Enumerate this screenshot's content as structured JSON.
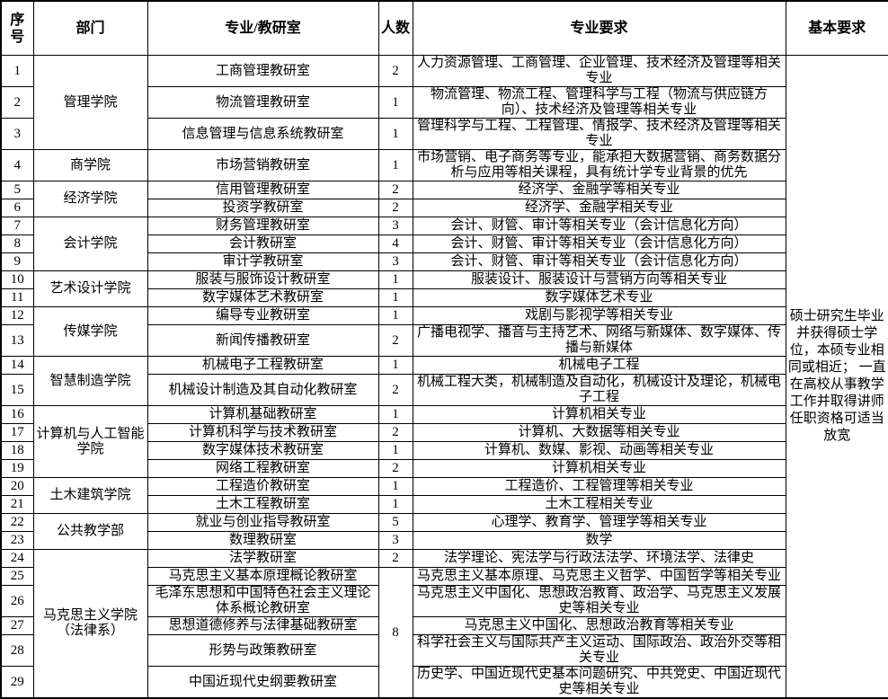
{
  "table": {
    "headers": [
      "序号",
      "部门",
      "专业/教研室",
      "人数",
      "专业要求",
      "基本要求"
    ],
    "basic_requirement": "硕士研究生毕业并获得硕士学位，本硕专业相同或相近； 一直在高校从事教学工作并取得讲师任职资格可适当放宽",
    "departments": [
      {
        "name": "管理学院",
        "rows": [
          {
            "no": "1",
            "office": "工商管理教研室",
            "count": "2",
            "requirement": "人力资源管理、工商管理、企业管理、技术经济及管理等相关专业"
          },
          {
            "no": "2",
            "office": "物流管理教研室",
            "count": "1",
            "requirement": "物流管理、物流工程、管理科学与工程（物流与供应链方向）、技术经济及管理等相关专业"
          },
          {
            "no": "3",
            "office": "信息管理与信息系统教研室",
            "count": "1",
            "requirement": "管理科学与工程、工程管理、情报学、技术经济及管理等相关专业"
          }
        ]
      },
      {
        "name": "商学院",
        "rows": [
          {
            "no": "4",
            "office": "市场营销教研室",
            "count": "1",
            "requirement": "市场营销、电子商务等专业，能承担大数据营销、商务数据分析与应用等相关课程，具有统计学专业背景的优先"
          }
        ]
      },
      {
        "name": "经济学院",
        "rows": [
          {
            "no": "5",
            "office": "信用管理教研室",
            "count": "2",
            "requirement": "经济学、金融学等相关专业"
          },
          {
            "no": "6",
            "office": "投资学教研室",
            "count": "2",
            "requirement": "经济学、金融学相关专业"
          }
        ]
      },
      {
        "name": "会计学院",
        "rows": [
          {
            "no": "7",
            "office": "财务管理教研室",
            "count": "3",
            "requirement": "会计、财管、审计等相关专业（会计信息化方向）"
          },
          {
            "no": "8",
            "office": "会计教研室",
            "count": "4",
            "requirement": "会计、财管、审计等相关专业（会计信息化方向）"
          },
          {
            "no": "9",
            "office": "审计学教研室",
            "count": "3",
            "requirement": "会计、财管、审计等相关专业（会计信息化方向）"
          }
        ]
      },
      {
        "name": "艺术设计学院",
        "rows": [
          {
            "no": "10",
            "office": "服装与服饰设计教研室",
            "count": "1",
            "requirement": "服装设计、服装设计与营销方向等相关专业"
          },
          {
            "no": "11",
            "office": "数字媒体艺术教研室",
            "count": "1",
            "requirement": "数字媒体艺术专业"
          }
        ]
      },
      {
        "name": "传媒学院",
        "rows": [
          {
            "no": "12",
            "office": "编导专业教研室",
            "count": "1",
            "requirement": "戏剧与影视学等相关专业"
          },
          {
            "no": "13",
            "office": "新闻传播教研室",
            "count": "2",
            "requirement": "广播电视学、播音与主持艺术、网络与新媒体、数字媒体、传播与新媒体"
          }
        ]
      },
      {
        "name": "智慧制造学院",
        "rows": [
          {
            "no": "14",
            "office": "机械电子工程教研室",
            "count": "1",
            "requirement": "机械电子工程"
          },
          {
            "no": "15",
            "office": "机械设计制造及其自动化教研室",
            "count": "2",
            "requirement": "机械工程大类，机械制造及自动化，机械设计及理论，机械电子工程"
          }
        ]
      },
      {
        "name": "计算机与人工智能学院",
        "rows": [
          {
            "no": "16",
            "office": "计算机基础教研室",
            "count": "1",
            "requirement": "计算机相关专业"
          },
          {
            "no": "17",
            "office": "计算机科学与技术教研室",
            "count": "2",
            "requirement": "计算机、大数据等相关专业"
          },
          {
            "no": "18",
            "office": "数字媒体技术教研室",
            "count": "1",
            "requirement": "计算机、数媒、影视、动画等相关专业"
          },
          {
            "no": "19",
            "office": "网络工程教研室",
            "count": "2",
            "requirement": "计算机相关专业"
          }
        ]
      },
      {
        "name": "土木建筑学院",
        "rows": [
          {
            "no": "20",
            "office": "工程造价教研室",
            "count": "1",
            "requirement": "工程造价、工程管理等相关专业"
          },
          {
            "no": "21",
            "office": "土木工程教研室",
            "count": "1",
            "requirement": "土木工程相关专业"
          }
        ]
      },
      {
        "name": "公共教学部",
        "rows": [
          {
            "no": "22",
            "office": "就业与创业指导教研室",
            "count": "5",
            "requirement": "心理学、教育学、管理学等相关专业"
          },
          {
            "no": "23",
            "office": "数理教研室",
            "count": "3",
            "requirement": "数学"
          }
        ]
      },
      {
        "name": "马克思主义学院（法律系）",
        "rows": [
          {
            "no": "24",
            "office": "法学教研室",
            "count": "2",
            "requirement": "法学理论、宪法学与行政法法学、环境法学、法律史"
          },
          {
            "no": "25",
            "office": "马克思主义基本原理概论教研室",
            "count": "8",
            "count_rowspan": 5,
            "requirement": "马克思主义基本原理、马克思主义哲学、中国哲学等相关专业"
          },
          {
            "no": "26",
            "office": "毛泽东思想和中国特色社会主义理论体系概论教研室",
            "requirement": "马克思主义中国化、思想政治教育、政治学、马克思主义发展史等相关专业"
          },
          {
            "no": "27",
            "office": "思想道德修养与法律基础教研室",
            "requirement": "马克思主义中国化、思想政治教育等相关专业"
          },
          {
            "no": "28",
            "office": "形势与政策教研室",
            "requirement": "科学社会主义与国际共产主义运动、国际政治、政治外交等相关专业"
          },
          {
            "no": "29",
            "office": "中国近现代史纲要教研室",
            "requirement": "历史学、中国近现代史基本问题研究、中共党史、中国近现代史等相关专业"
          }
        ]
      }
    ]
  }
}
